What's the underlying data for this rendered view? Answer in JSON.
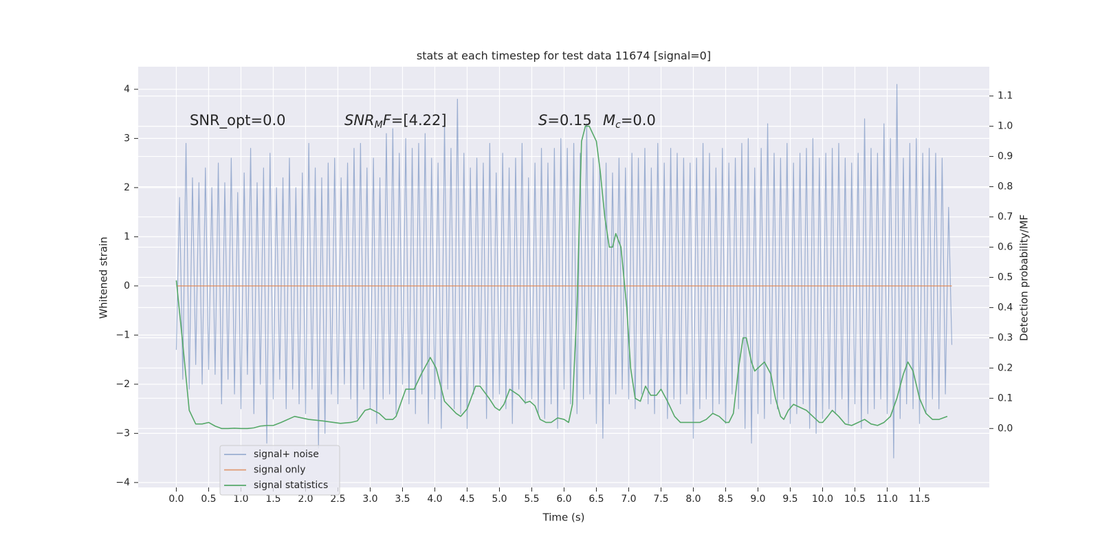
{
  "chart_data": {
    "type": "line",
    "title": "stats at each timestep for test data 11674 [signal=0]",
    "x_label": "Time (s)",
    "y_label": "Whitened strain",
    "y2_label": "Detection probability/MF",
    "grid": true,
    "legend": "lower left",
    "xlim": [
      -0.59,
      12.58
    ],
    "ylim": [
      -4.1,
      4.46
    ],
    "y2lim": [
      -0.195,
      1.197
    ],
    "xticks": [
      {
        "value": 0,
        "label": "0.0"
      },
      0.5,
      {
        "value": 1,
        "label": "1.0"
      },
      1.5,
      {
        "value": 2,
        "label": "2.0"
      },
      2.5,
      {
        "value": 3,
        "label": "3.0"
      },
      3.5,
      {
        "value": 4,
        "label": "4.0"
      },
      4.5,
      {
        "value": 5,
        "label": "5.0"
      },
      5.5,
      {
        "value": 6,
        "label": "6.0"
      },
      6.5,
      {
        "value": 7,
        "label": "7.0"
      },
      7.5,
      {
        "value": 8,
        "label": "8.0"
      },
      8.5,
      {
        "value": 9,
        "label": "9.0"
      },
      9.5,
      {
        "value": 10,
        "label": "10.0"
      },
      10.5,
      {
        "value": 11,
        "label": "11.0"
      },
      11.5
    ],
    "yticks": [
      {
        "value": -4,
        "label": "−4"
      },
      {
        "value": -3,
        "label": "−3"
      },
      {
        "value": -2,
        "label": "−2"
      },
      {
        "value": -1,
        "label": "−1"
      },
      0,
      1,
      2,
      3,
      4
    ],
    "y2ticks": [
      {
        "value": 0,
        "label": "0.0"
      },
      0.1,
      0.2,
      0.3,
      0.4,
      0.5,
      0.6,
      0.7,
      0.8,
      0.9,
      {
        "value": 1,
        "label": "1.0"
      },
      1.1
    ],
    "annotations": [
      {
        "parts": [
          {
            "text": "SNR_opt=0.0"
          }
        ]
      },
      {
        "parts": [
          {
            "text": "SNR",
            "style": "italic"
          },
          {
            "text": "M",
            "style": "italic-sub"
          },
          {
            "text": "F",
            "style": "italic"
          },
          {
            "text": "=[4.22]"
          }
        ]
      },
      {
        "parts": [
          {
            "text": "S",
            "style": "italic"
          },
          {
            "text": "=0.15"
          }
        ]
      },
      {
        "parts": [
          {
            "text": "M",
            "style": "italic"
          },
          {
            "text": "c",
            "style": "italic-sub"
          },
          {
            "text": "=0.0"
          }
        ]
      }
    ],
    "series": [
      {
        "name": "signal+ noise",
        "color": "#4c72b0",
        "opacity": 0.5,
        "x": [
          0,
          0.05,
          0.1,
          0.15,
          0.2,
          0.25,
          0.3,
          0.35,
          0.4,
          0.45,
          0.5,
          0.55,
          0.6,
          0.65,
          0.7,
          0.75,
          0.8,
          0.85,
          0.9,
          0.95,
          1,
          1.05,
          1.1,
          1.15,
          1.2,
          1.25,
          1.3,
          1.35,
          1.4,
          1.45,
          1.5,
          1.55,
          1.6,
          1.65,
          1.7,
          1.75,
          1.8,
          1.85,
          1.9,
          1.95,
          2,
          2.05,
          2.1,
          2.15,
          2.2,
          2.25,
          2.3,
          2.35,
          2.4,
          2.45,
          2.5,
          2.55,
          2.6,
          2.65,
          2.7,
          2.75,
          2.8,
          2.85,
          2.9,
          2.95,
          3,
          3.05,
          3.1,
          3.15,
          3.2,
          3.25,
          3.3,
          3.35,
          3.4,
          3.45,
          3.5,
          3.55,
          3.6,
          3.65,
          3.7,
          3.75,
          3.8,
          3.85,
          3.9,
          3.95,
          4,
          4.05,
          4.1,
          4.15,
          4.2,
          4.25,
          4.3,
          4.35,
          4.4,
          4.45,
          4.5,
          4.55,
          4.6,
          4.65,
          4.7,
          4.75,
          4.8,
          4.85,
          4.9,
          4.95,
          5,
          5.05,
          5.1,
          5.15,
          5.2,
          5.25,
          5.3,
          5.35,
          5.4,
          5.45,
          5.5,
          5.55,
          5.6,
          5.65,
          5.7,
          5.75,
          5.8,
          5.85,
          5.9,
          5.95,
          6,
          6.05,
          6.1,
          6.15,
          6.2,
          6.25,
          6.3,
          6.35,
          6.4,
          6.45,
          6.5,
          6.55,
          6.6,
          6.65,
          6.7,
          6.75,
          6.8,
          6.85,
          6.9,
          6.95,
          7,
          7.05,
          7.1,
          7.15,
          7.2,
          7.25,
          7.3,
          7.35,
          7.4,
          7.45,
          7.5,
          7.55,
          7.6,
          7.65,
          7.7,
          7.75,
          7.8,
          7.85,
          7.9,
          7.95,
          8,
          8.05,
          8.1,
          8.15,
          8.2,
          8.25,
          8.3,
          8.35,
          8.4,
          8.45,
          8.5,
          8.55,
          8.6,
          8.65,
          8.7,
          8.75,
          8.8,
          8.85,
          8.9,
          8.95,
          9,
          9.05,
          9.1,
          9.15,
          9.2,
          9.25,
          9.3,
          9.35,
          9.4,
          9.45,
          9.5,
          9.55,
          9.6,
          9.65,
          9.7,
          9.75,
          9.8,
          9.85,
          9.9,
          9.95,
          10,
          10.05,
          10.1,
          10.15,
          10.2,
          10.25,
          10.3,
          10.35,
          10.4,
          10.45,
          10.5,
          10.55,
          10.6,
          10.65,
          10.7,
          10.75,
          10.8,
          10.85,
          10.9,
          10.95,
          11,
          11.05,
          11.1,
          11.15,
          11.2,
          11.25,
          11.3,
          11.35,
          11.4,
          11.45,
          11.5,
          11.55,
          11.6,
          11.65,
          11.7,
          11.75,
          11.8,
          11.85,
          11.9,
          11.95,
          12
        ],
        "values": [
          -1.3,
          1.8,
          -1.9,
          2.9,
          -2.1,
          2.2,
          -1.6,
          2.1,
          -2.0,
          2.4,
          -1.7,
          2.0,
          -1.8,
          2.5,
          -2.4,
          2.1,
          -1.9,
          2.6,
          -2.2,
          1.9,
          -2.5,
          2.3,
          -1.8,
          2.8,
          -2.6,
          2.1,
          -2.0,
          2.4,
          -3.2,
          2.7,
          -2.3,
          2.0,
          -1.9,
          2.2,
          -2.5,
          2.6,
          -2.1,
          2.0,
          -2.4,
          2.3,
          -2.6,
          2.9,
          -2.1,
          2.4,
          -3.3,
          2.2,
          -3.0,
          2.5,
          -2.2,
          2.6,
          -2.4,
          2.2,
          -2.0,
          2.5,
          -2.3,
          2.8,
          -2.7,
          2.9,
          -2.1,
          2.4,
          -2.5,
          2.6,
          -2.8,
          2.2,
          -2.3,
          3.1,
          -2.2,
          3.2,
          -2.6,
          2.7,
          -2.0,
          3.0,
          -2.4,
          2.8,
          -2.6,
          2.9,
          -2.2,
          3.1,
          -2.8,
          2.6,
          -2.3,
          2.5,
          -2.9,
          3.3,
          -2.1,
          2.8,
          -2.5,
          3.8,
          -2.6,
          2.7,
          -2.9,
          2.4,
          -2.2,
          2.6,
          -2.0,
          2.5,
          -2.7,
          2.9,
          -2.3,
          2.3,
          -2.2,
          2.7,
          -2.5,
          2.4,
          -2.8,
          2.6,
          -2.1,
          2.9,
          -2.4,
          2.2,
          -2.3,
          2.5,
          -2.6,
          2.8,
          -2.7,
          2.5,
          -2.4,
          2.8,
          -2.9,
          3.0,
          -2.1,
          2.8,
          -2.4,
          2.9,
          -2.6,
          2.7,
          -2.3,
          3.3,
          -2.2,
          2.6,
          -2.8,
          2.4,
          -3.1,
          2.5,
          -2.4,
          2.3,
          -2.2,
          2.6,
          -2.1,
          2.4,
          -2.3,
          2.7,
          -2.5,
          2.6,
          -2.2,
          2.8,
          -2.4,
          2.4,
          -2.6,
          2.9,
          -2.1,
          2.5,
          -2.7,
          2.8,
          -2.3,
          2.7,
          -2.4,
          2.6,
          -2.2,
          2.5,
          -3.1,
          2.6,
          -2.5,
          2.9,
          -2.3,
          2.7,
          -2.6,
          2.4,
          -2.4,
          2.8,
          -2.8,
          2.5,
          -2.2,
          2.6,
          -2.5,
          2.9,
          -2.9,
          3.0,
          -3.2,
          2.4,
          -2.6,
          2.8,
          -2.7,
          3.3,
          -2.4,
          2.7,
          -2.5,
          2.6,
          -2.3,
          2.9,
          -2.8,
          2.5,
          -2.6,
          2.7,
          -2.4,
          2.8,
          -2.9,
          3.0,
          -3.0,
          2.6,
          -2.7,
          2.7,
          -2.5,
          2.8,
          -2.6,
          2.9,
          -2.3,
          2.6,
          -2.8,
          2.5,
          -2.4,
          2.7,
          -2.9,
          3.4,
          -2.6,
          2.8,
          -2.5,
          2.7,
          -2.3,
          3.3,
          -2.6,
          3.0,
          -3.5,
          4.1,
          -2.7,
          2.6,
          -2.4,
          2.9,
          -2.5,
          3.0,
          -2.8,
          2.7,
          -2.6,
          2.8,
          -2.3,
          2.7,
          -2.5,
          2.6,
          -2.2,
          1.6,
          -1.2
        ]
      },
      {
        "name": "signal only",
        "color": "#dd8452",
        "opacity": 0.8,
        "x": [
          0,
          12
        ],
        "values": [
          0,
          0
        ]
      },
      {
        "name": "signal statistics",
        "color": "#55a868",
        "opacity": 1,
        "axis": "y2",
        "x": [
          0,
          0.1,
          0.2,
          0.3,
          0.4,
          0.5,
          0.6,
          0.7,
          0.8,
          0.9,
          1.0,
          1.1,
          1.2,
          1.3,
          1.4,
          1.5,
          1.62,
          1.83,
          2.05,
          2.27,
          2.54,
          2.7,
          2.8,
          2.92,
          3.0,
          3.14,
          3.24,
          3.35,
          3.4,
          3.5,
          3.55,
          3.68,
          3.79,
          3.93,
          4.02,
          4.15,
          4.33,
          4.4,
          4.5,
          4.63,
          4.7,
          4.84,
          4.93,
          5.0,
          5.07,
          5.16,
          5.3,
          5.4,
          5.47,
          5.55,
          5.63,
          5.72,
          5.8,
          5.9,
          6.0,
          6.07,
          6.13,
          6.2,
          6.27,
          6.33,
          6.39,
          6.5,
          6.56,
          6.63,
          6.7,
          6.75,
          6.8,
          6.88,
          6.97,
          7.03,
          7.1,
          7.18,
          7.26,
          7.34,
          7.43,
          7.5,
          7.6,
          7.71,
          7.8,
          7.9,
          8.0,
          8.1,
          8.2,
          8.3,
          8.4,
          8.5,
          8.55,
          8.62,
          8.7,
          8.77,
          8.82,
          8.9,
          8.95,
          9.05,
          9.1,
          9.2,
          9.27,
          9.35,
          9.4,
          9.47,
          9.55,
          9.65,
          9.75,
          9.85,
          9.95,
          10.0,
          10.08,
          10.15,
          10.25,
          10.35,
          10.45,
          10.55,
          10.65,
          10.75,
          10.85,
          10.95,
          11.05,
          11.15,
          11.25,
          11.32,
          11.4,
          11.5,
          11.6,
          11.7,
          11.8,
          11.93
        ],
        "values": [
          0.49,
          0.28,
          0.06,
          0.015,
          0.015,
          0.02,
          0.008,
          0.0,
          0.0,
          0.001,
          0.0,
          0.0,
          0.002,
          0.008,
          0.01,
          0.01,
          0.02,
          0.04,
          0.03,
          0.025,
          0.017,
          0.02,
          0.025,
          0.06,
          0.065,
          0.05,
          0.03,
          0.03,
          0.04,
          0.1,
          0.13,
          0.13,
          0.18,
          0.235,
          0.2,
          0.09,
          0.05,
          0.04,
          0.065,
          0.14,
          0.14,
          0.1,
          0.07,
          0.06,
          0.08,
          0.13,
          0.11,
          0.085,
          0.09,
          0.075,
          0.03,
          0.02,
          0.02,
          0.035,
          0.03,
          0.02,
          0.08,
          0.4,
          0.95,
          1.0,
          1.0,
          0.95,
          0.85,
          0.7,
          0.6,
          0.6,
          0.645,
          0.6,
          0.4,
          0.2,
          0.1,
          0.09,
          0.14,
          0.11,
          0.11,
          0.13,
          0.09,
          0.04,
          0.02,
          0.02,
          0.02,
          0.02,
          0.03,
          0.05,
          0.04,
          0.02,
          0.02,
          0.05,
          0.2,
          0.3,
          0.3,
          0.22,
          0.19,
          0.21,
          0.22,
          0.18,
          0.1,
          0.04,
          0.03,
          0.06,
          0.08,
          0.07,
          0.06,
          0.04,
          0.02,
          0.02,
          0.04,
          0.06,
          0.04,
          0.015,
          0.01,
          0.02,
          0.03,
          0.015,
          0.01,
          0.02,
          0.04,
          0.1,
          0.18,
          0.22,
          0.19,
          0.1,
          0.05,
          0.03,
          0.03,
          0.04
        ]
      }
    ]
  }
}
